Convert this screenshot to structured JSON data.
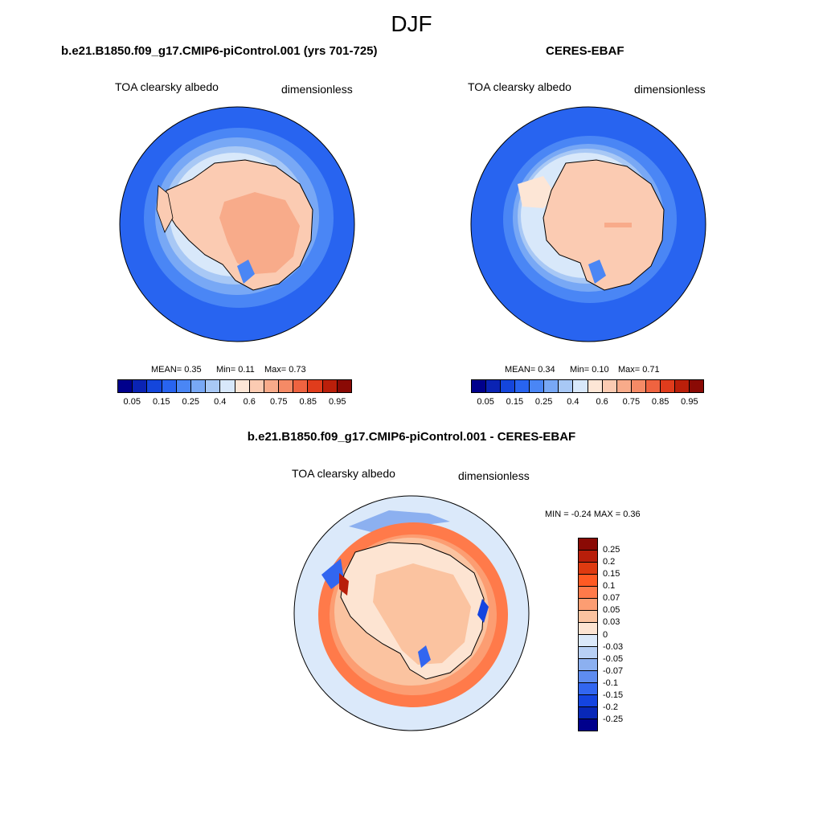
{
  "season": "DJF",
  "panels": {
    "model": {
      "title": "b.e21.B1850.f09_g17.CMIP6-piControl.001 (yrs 701-725)",
      "variable": "TOA clearsky albedo",
      "units": "dimensionless",
      "stats": {
        "mean": "MEAN=   0.35",
        "min": "Min=   0.11",
        "max": "Max=    0.73"
      }
    },
    "obs": {
      "title": "CERES-EBAF",
      "variable": "TOA clearsky albedo",
      "units": "dimensionless",
      "stats": {
        "mean": "MEAN=   0.34",
        "min": "Min=   0.10",
        "max": "Max=    0.71"
      }
    },
    "diff": {
      "title": "b.e21.B1850.f09_g17.CMIP6-piControl.001 - CERES-EBAF",
      "variable": "TOA clearsky albedo",
      "units": "dimensionless",
      "stats": "MIN =   -0.24 MAX =    0.36"
    }
  },
  "colorbar_main": {
    "colors": [
      "#00008c",
      "#0a23b4",
      "#1446dc",
      "#2864f0",
      "#4a86f5",
      "#78a8f5",
      "#a8c8f5",
      "#d8e8fa",
      "#fde6d6",
      "#fbcbb2",
      "#f8ab8a",
      "#f58a66",
      "#ef6340",
      "#e03c1c",
      "#bb1f0a",
      "#8a0a05"
    ],
    "tick_labels": [
      "0.05",
      "0.15",
      "0.25",
      "0.4",
      "0.6",
      "0.75",
      "0.85",
      "0.95"
    ]
  },
  "colorbar_diff": {
    "colors": [
      "#8a0a05",
      "#b81e0a",
      "#de3a10",
      "#ff5a23",
      "#ff7a4a",
      "#fc9d72",
      "#fbc3a0",
      "#fde4d2",
      "#dbe9fa",
      "#b8d0f5",
      "#8cb0f0",
      "#5e8cf0",
      "#3266f0",
      "#1444e0",
      "#0828b8",
      "#00008c"
    ],
    "labels": [
      "0.25",
      "0.2",
      "0.15",
      "0.1",
      "0.07",
      "0.05",
      "0.03",
      "0",
      "-0.03",
      "-0.05",
      "-0.07",
      "-0.1",
      "-0.15",
      "-0.2",
      "-0.25"
    ]
  }
}
